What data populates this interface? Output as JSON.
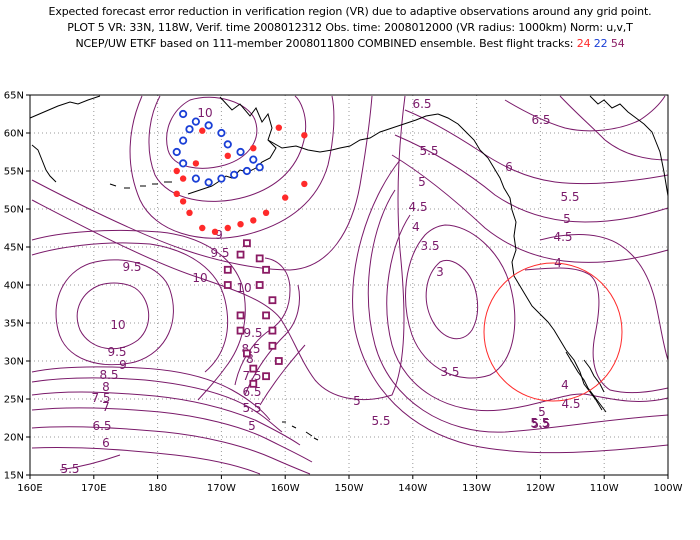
{
  "title": {
    "line1": "Expected forecast error reduction in verification region (VR) due to adaptive observations around any grid point.",
    "line2": "PLOT 5 VR: 33N, 118W, Verif. time 2008012312 Obs. time: 2008012000 (VR radius: 1000km) Norm: u,v,T",
    "line3_prefix": "NCEP/UW ETKF based on 111-member 2008011800 COMBINED ensemble.  Best flight tracks:",
    "track_a": "24",
    "track_b": "22",
    "track_c": "54"
  },
  "axes": {
    "lat_ticks": [
      "65N",
      "60N",
      "55N",
      "50N",
      "45N",
      "40N",
      "35N",
      "30N",
      "25N",
      "20N",
      "15N"
    ],
    "lon_ticks": [
      "160E",
      "170E",
      "180",
      "170W",
      "160W",
      "150W",
      "140W",
      "130W",
      "120W",
      "110W",
      "100W"
    ]
  },
  "colors": {
    "contour": "#7a1a6a",
    "coast": "#000000",
    "track_24": "#ff2a2a",
    "track_22": "#1a3fd6",
    "track_54": "#8a1a63",
    "verification_circle": "#ff2a2a",
    "grid": "#9a9a9a"
  },
  "contour_labels": [
    "10",
    "6.5",
    "6.5",
    "6",
    "5.5",
    "5.5",
    "5",
    "5",
    "4.5",
    "4.5",
    "4",
    "4",
    "3.5",
    "3",
    "9",
    "9.5",
    "9.5",
    "10",
    "10",
    "9",
    "9.5",
    "8.5",
    "8",
    "7.5",
    "7",
    "6.5",
    "6",
    "5.5",
    "10",
    "9.5",
    "8.5",
    "8",
    "7.5",
    "6.5",
    "5.5",
    "5",
    "5",
    "5.5",
    "5.5",
    "3.5",
    "4",
    "4.5",
    "5",
    "5.5",
    "5.5"
  ],
  "flight_tracks": {
    "track_24": [
      [
        -173,
        60.3
      ],
      [
        -169,
        57
      ],
      [
        -165,
        58
      ],
      [
        -161,
        60.7
      ],
      [
        -157,
        59.7
      ],
      [
        -157,
        53.3
      ],
      [
        -160,
        51.5
      ],
      [
        -163,
        49.5
      ],
      [
        -165,
        48.5
      ],
      [
        -167,
        48
      ],
      [
        -169,
        47.5
      ],
      [
        -171,
        47
      ],
      [
        -173,
        47.5
      ],
      [
        -175,
        49.5
      ],
      [
        -176,
        51
      ],
      [
        -177,
        52
      ],
      [
        -176,
        54
      ],
      [
        -177,
        55
      ],
      [
        -174,
        56
      ]
    ],
    "track_22": [
      [
        -174,
        61.5
      ],
      [
        -172,
        61
      ],
      [
        -170,
        60
      ],
      [
        -169,
        58.5
      ],
      [
        -167,
        57.5
      ],
      [
        -165,
        56.5
      ],
      [
        -164,
        55.5
      ],
      [
        -166,
        55
      ],
      [
        -168,
        54.5
      ],
      [
        -170,
        54
      ],
      [
        -172,
        53.5
      ],
      [
        -174,
        54
      ],
      [
        -176,
        56
      ],
      [
        -177,
        57.5
      ],
      [
        -176,
        59
      ],
      [
        -175,
        60.5
      ],
      [
        -176,
        62.5
      ]
    ],
    "track_54": [
      [
        -166,
        45.5
      ],
      [
        -164,
        43.5
      ],
      [
        -163,
        42
      ],
      [
        -164,
        40
      ],
      [
        -162,
        38
      ],
      [
        -163,
        36
      ],
      [
        -162,
        34
      ],
      [
        -162,
        32
      ],
      [
        -161,
        30
      ],
      [
        -163,
        28
      ],
      [
        -165,
        27
      ],
      [
        -165,
        29
      ],
      [
        -166,
        31
      ],
      [
        -167,
        34
      ],
      [
        -167,
        36
      ],
      [
        -169,
        40
      ],
      [
        -169,
        42
      ],
      [
        -167,
        44
      ]
    ]
  },
  "verification_region": {
    "lat": 33,
    "lon": -118,
    "radius_km": 1000
  }
}
